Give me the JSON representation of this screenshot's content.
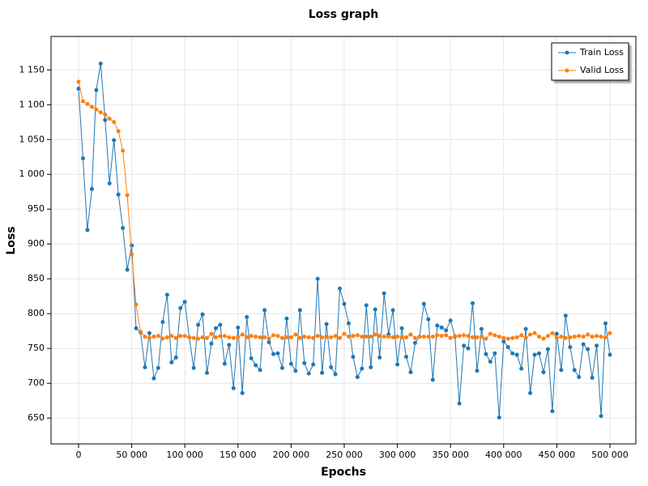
{
  "chart_data": {
    "type": "line",
    "title": "Loss graph",
    "x_label": "Epochs",
    "y_label": "Loss",
    "x": [
      0,
      4167,
      8333,
      12500,
      16667,
      20833,
      25000,
      29167,
      33333,
      37500,
      41667,
      45833,
      50000,
      54167,
      58333,
      62500,
      66667,
      70833,
      75000,
      79167,
      83333,
      87500,
      91667,
      95833,
      100000,
      104167,
      108333,
      112500,
      116667,
      120833,
      125000,
      129167,
      133333,
      137500,
      141667,
      145833,
      150000,
      154167,
      158333,
      162500,
      166667,
      170833,
      175000,
      179167,
      183333,
      187500,
      191667,
      195833,
      200000,
      204167,
      208333,
      212500,
      216667,
      220833,
      225000,
      229167,
      233333,
      237500,
      241667,
      245833,
      250000,
      254167,
      258333,
      262500,
      266667,
      270833,
      275000,
      279167,
      283333,
      287500,
      291667,
      295833,
      300000,
      304167,
      308333,
      312500,
      316667,
      320833,
      325000,
      329167,
      333333,
      337500,
      341667,
      345833,
      350000,
      354167,
      358333,
      362500,
      366667,
      370833,
      375000,
      379167,
      383333,
      387500,
      391667,
      395833,
      400000,
      404167,
      408333,
      412500,
      416667,
      420833,
      425000,
      429167,
      433333,
      437500,
      441667,
      445833,
      450000,
      454167,
      458333,
      462500,
      466667,
      470833,
      475000,
      479167,
      483333,
      487500,
      491667,
      495833,
      500000
    ],
    "series": [
      {
        "name": "Train Loss",
        "color": "#1f77b4",
        "values": [
          1123,
          1023,
          920,
          979,
          1121,
          1159,
          1078,
          987,
          1049,
          971,
          923,
          863,
          898,
          779,
          773,
          723,
          772,
          707,
          722,
          788,
          827,
          730,
          737,
          808,
          817,
          766,
          722,
          784,
          799,
          715,
          757,
          779,
          784,
          728,
          755,
          693,
          780,
          686,
          795,
          736,
          726,
          719,
          805,
          759,
          742,
          743,
          722,
          793,
          728,
          718,
          805,
          729,
          714,
          727,
          850,
          715,
          785,
          723,
          713,
          836,
          814,
          786,
          738,
          709,
          721,
          812,
          723,
          806,
          737,
          829,
          770,
          805,
          727,
          779,
          738,
          716,
          758,
          767,
          814,
          792,
          705,
          783,
          780,
          776,
          790,
          767,
          671,
          754,
          750,
          815,
          718,
          778,
          742,
          731,
          743,
          651,
          760,
          752,
          743,
          741,
          721,
          778,
          686,
          741,
          743,
          716,
          749,
          660,
          771,
          719,
          797,
          752,
          719,
          709,
          756,
          749,
          708,
          754,
          653,
          786,
          741
        ]
      },
      {
        "name": "Valid Loss",
        "color": "#ff7f0e",
        "values": [
          1133,
          1105,
          1101,
          1097,
          1093,
          1089,
          1086,
          1080,
          1075,
          1062,
          1034,
          970,
          885,
          813,
          774,
          767,
          765,
          767,
          768,
          764,
          766,
          768,
          765,
          768,
          768,
          766,
          765,
          764,
          766,
          765,
          771,
          766,
          768,
          768,
          766,
          765,
          766,
          770,
          766,
          768,
          767,
          766,
          766,
          764,
          769,
          768,
          765,
          766,
          766,
          770,
          765,
          767,
          766,
          765,
          768,
          766,
          767,
          766,
          768,
          765,
          771,
          767,
          768,
          769,
          767,
          767,
          767,
          770,
          768,
          767,
          767,
          766,
          767,
          766,
          766,
          770,
          765,
          767,
          767,
          767,
          767,
          769,
          768,
          769,
          765,
          768,
          768,
          769,
          768,
          766,
          766,
          767,
          764,
          771,
          769,
          767,
          765,
          764,
          765,
          766,
          769,
          765,
          770,
          772,
          767,
          764,
          768,
          772,
          765,
          767,
          765,
          766,
          767,
          768,
          767,
          770,
          767,
          768,
          767,
          766,
          772
        ]
      }
    ],
    "xlim": [
      -25900,
      524400
    ],
    "xticks": [
      0,
      {
        "value": 50000,
        "label": "50 000"
      },
      {
        "value": 100000,
        "label": "100 000"
      },
      {
        "value": 150000,
        "label": "150 000"
      },
      {
        "value": 200000,
        "label": "200 000"
      },
      {
        "value": 250000,
        "label": "250 000"
      },
      {
        "value": 300000,
        "label": "300 000"
      },
      {
        "value": 350000,
        "label": "350 000"
      },
      {
        "value": 400000,
        "label": "400 000"
      },
      {
        "value": 450000,
        "label": "450 000"
      },
      {
        "value": 500000,
        "label": "500 000"
      }
    ],
    "ylim": [
      613,
      1198
    ],
    "yticks": [
      650,
      700,
      750,
      800,
      850,
      900,
      950,
      {
        "value": 1000,
        "label": "1 000"
      },
      {
        "value": 1050,
        "label": "1 050"
      },
      {
        "value": 1100,
        "label": "1 100"
      },
      {
        "value": 1150,
        "label": "1 150"
      }
    ],
    "grid": true,
    "legend": "upper right"
  }
}
